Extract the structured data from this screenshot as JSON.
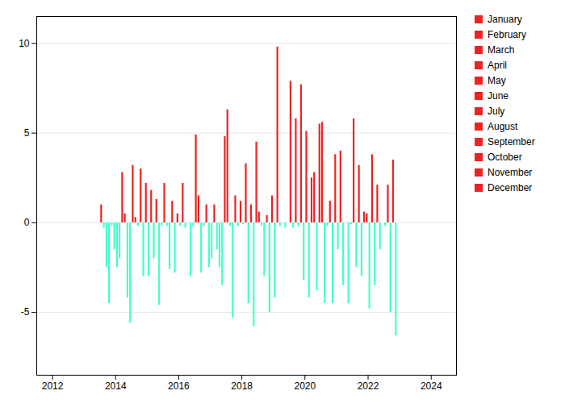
{
  "chart_data": {
    "type": "bar",
    "xlim": [
      2011.5,
      2024.8
    ],
    "xticks": [
      2012,
      2014,
      2016,
      2018,
      2020,
      2022,
      2024
    ],
    "ylim": [
      -8.5,
      11.5
    ],
    "yticks": [
      -5,
      0,
      5,
      10
    ],
    "grid": true,
    "legend": "right",
    "series": [
      {
        "name": "January",
        "color": "#EE2222",
        "x": [
          2013.5416666666667,
          2014.5416666666667,
          2015.5416666666667,
          2016.5416666666667,
          2017.5416666666667,
          2018.5416666666667,
          2019.5416666666667,
          2020.5416666666667,
          2021.5416666666667,
          2022.5416666666667
        ],
        "values": [
          1.0,
          3.2,
          2.2,
          4.9,
          6.3,
          0.6,
          7.9,
          5.6,
          5.8,
          -0.2
        ],
        "colors": [
          "#EE2222",
          "#EE2222",
          "#EE2222",
          "#EE2222",
          "#EE2222",
          "#EE2222",
          "#EE2222",
          "#EE2222",
          "#EE2222",
          "#44FFCC"
        ]
      },
      {
        "name": "February",
        "color": "#EE2222",
        "x": [
          2013.625,
          2014.625,
          2015.625,
          2016.625,
          2017.625,
          2018.625,
          2019.625,
          2020.625,
          2021.625,
          2022.625
        ],
        "values": [
          -0.3,
          0.3,
          -0.2,
          1.5,
          -0.2,
          -0.2,
          -0.3,
          -4.5,
          -2.5,
          2.1
        ],
        "colors": [
          "#44FFCC",
          "#EE2222",
          "#44FFCC",
          "#EE2222",
          "#44FFCC",
          "#44FFCC",
          "#44FFCC",
          "#44FFCC",
          "#44FFCC",
          "#EE2222"
        ]
      },
      {
        "name": "March",
        "color": "#EE2222",
        "x": [
          2013.7083333333333,
          2014.7083333333333,
          2015.7083333333333,
          2016.7083333333333,
          2017.7083333333333,
          2018.7083333333333,
          2019.7083333333333,
          2020.7083333333333,
          2021.7083333333333,
          2022.7083333333333
        ],
        "values": [
          -2.5,
          -0.2,
          -2.6,
          -2.8,
          -5.3,
          -3.0,
          5.8,
          -0.2,
          3.2,
          -5.0
        ],
        "colors": [
          "#44FFCC",
          "#44FFCC",
          "#44FFCC",
          "#44FFCC",
          "#44FFCC",
          "#44FFCC",
          "#EE2222",
          "#44FFCC",
          "#EE2222",
          "#44FFCC"
        ]
      },
      {
        "name": "April",
        "color": "#EE2222",
        "x": [
          2013.7916666666667,
          2014.7916666666667,
          2015.7916666666667,
          2016.7916666666667,
          2017.7916666666667,
          2018.7916666666667,
          2019.7916666666667,
          2020.7916666666667,
          2021.7916666666667,
          2022.7916666666667
        ],
        "values": [
          -4.5,
          3.0,
          1.2,
          -0.2,
          1.5,
          0.4,
          -0.2,
          1.2,
          -3.0,
          3.5
        ],
        "colors": [
          "#44FFCC",
          "#EE2222",
          "#EE2222",
          "#44FFCC",
          "#EE2222",
          "#EE2222",
          "#44FFCC",
          "#EE2222",
          "#44FFCC",
          "#EE2222"
        ]
      },
      {
        "name": "May",
        "color": "#EE2222",
        "x": [
          2013.875,
          2014.875,
          2015.875,
          2016.875,
          2017.875,
          2018.875,
          2019.875,
          2020.875,
          2021.875,
          2022.875
        ],
        "values": [
          -0.2,
          -3.0,
          -2.8,
          1.0,
          -0.2,
          -5.0,
          7.7,
          -4.5,
          0.6,
          -6.3
        ],
        "colors": [
          "#44FFCC",
          "#44FFCC",
          "#44FFCC",
          "#EE2222",
          "#44FFCC",
          "#44FFCC",
          "#EE2222",
          "#44FFCC",
          "#EE2222",
          "#44FFCC"
        ]
      },
      {
        "name": "June",
        "color": "#EE2222",
        "x": [
          2013.9583333333333,
          2014.9583333333333,
          2015.9583333333333,
          2016.9583333333333,
          2017.9583333333333,
          2018.9583333333333,
          2019.9583333333333,
          2020.9583333333333,
          2021.9583333333333,
          2022.9583333333333
        ],
        "values": [
          -1.5,
          2.2,
          0.5,
          -2.5,
          1.2,
          1.5,
          -3.2,
          3.8,
          0.5,
          0.0
        ],
        "colors": [
          "#44FFCC",
          "#EE2222",
          "#EE2222",
          "#44FFCC",
          "#EE2222",
          "#EE2222",
          "#44FFCC",
          "#EE2222",
          "#EE2222",
          "#EE2222"
        ]
      },
      {
        "name": "July",
        "color": "#EE2222",
        "x": [
          2014.0416666666667,
          2015.0416666666667,
          2016.0416666666667,
          2017.0416666666667,
          2018.0416666666667,
          2019.0416666666667,
          2020.0416666666667,
          2021.0416666666667,
          2022.0416666666667,
          2023.0416666666667
        ],
        "values": [
          -2.5,
          -3.0,
          -0.2,
          -2.0,
          -0.1,
          -4.2,
          5.1,
          -1.5,
          -4.8,
          0.0
        ],
        "colors": [
          "#44FFCC",
          "#44FFCC",
          "#44FFCC",
          "#44FFCC",
          "#44FFCC",
          "#44FFCC",
          "#EE2222",
          "#44FFCC",
          "#44FFCC",
          "#EE2222"
        ]
      },
      {
        "name": "August",
        "color": "#EE2222",
        "x": [
          2014.125,
          2015.125,
          2016.125,
          2017.125,
          2018.125,
          2019.125,
          2020.125,
          2021.125,
          2022.125,
          2023.125
        ],
        "values": [
          -2.0,
          1.8,
          2.2,
          1.0,
          3.3,
          9.8,
          -4.2,
          4.0,
          3.8,
          0.0
        ],
        "colors": [
          "#44FFCC",
          "#EE2222",
          "#EE2222",
          "#EE2222",
          "#EE2222",
          "#EE2222",
          "#44FFCC",
          "#EE2222",
          "#EE2222",
          "#EE2222"
        ]
      },
      {
        "name": "September",
        "color": "#EE2222",
        "x": [
          2014.2083333333333,
          2015.2083333333333,
          2016.2083333333333,
          2017.2083333333333,
          2018.2083333333333,
          2019.2083333333333,
          2020.2083333333333,
          2021.2083333333333,
          2022.2083333333333,
          2023.2083333333333
        ],
        "values": [
          2.8,
          -2.0,
          -0.3,
          -1.5,
          -4.5,
          -0.2,
          2.5,
          -3.5,
          -3.5,
          0.0
        ],
        "colors": [
          "#EE2222",
          "#44FFCC",
          "#44FFCC",
          "#44FFCC",
          "#44FFCC",
          "#44FFCC",
          "#EE2222",
          "#44FFCC",
          "#44FFCC",
          "#EE2222"
        ]
      },
      {
        "name": "October",
        "color": "#EE2222",
        "x": [
          2014.2916666666667,
          2015.2916666666667,
          2016.2916666666667,
          2017.2916666666667,
          2018.2916666666667,
          2019.2916666666667,
          2020.2916666666667,
          2021.2916666666667,
          2022.2916666666667,
          2023.2916666666667
        ],
        "values": [
          0.5,
          1.3,
          0.0,
          -2.5,
          1.0,
          0.0,
          2.8,
          0.0,
          2.1,
          0.0
        ],
        "colors": [
          "#EE2222",
          "#EE2222",
          "#EE2222",
          "#44FFCC",
          "#EE2222",
          "#EE2222",
          "#EE2222",
          "#EE2222",
          "#EE2222",
          "#EE2222"
        ]
      },
      {
        "name": "November",
        "color": "#EE2222",
        "x": [
          2014.375,
          2015.375,
          2016.375,
          2017.375,
          2018.375,
          2019.375,
          2020.375,
          2021.375,
          2022.375,
          2023.375
        ],
        "values": [
          -4.2,
          -4.6,
          -3.0,
          -3.5,
          -5.8,
          -0.3,
          -3.8,
          -4.5,
          -1.5,
          0.0
        ],
        "colors": [
          "#44FFCC",
          "#44FFCC",
          "#44FFCC",
          "#44FFCC",
          "#44FFCC",
          "#44FFCC",
          "#44FFCC",
          "#44FFCC",
          "#44FFCC",
          "#EE2222"
        ]
      },
      {
        "name": "December",
        "color": "#EE2222",
        "x": [
          2014.4583333333333,
          2015.4583333333333,
          2016.4583333333333,
          2017.4583333333333,
          2018.4583333333333,
          2019.4583333333333,
          2020.4583333333333,
          2021.4583333333333,
          2022.4583333333333,
          2023.4583333333333
        ],
        "values": [
          -5.6,
          -0.2,
          -0.2,
          4.8,
          4.5,
          0.0,
          5.5,
          -0.1,
          0.0,
          0.0
        ],
        "colors": [
          "#44FFCC",
          "#44FFCC",
          "#44FFCC",
          "#EE2222",
          "#EE2222",
          "#EE2222",
          "#EE2222",
          "#44FFCC",
          "#EE2222",
          "#EE2222"
        ]
      }
    ]
  }
}
